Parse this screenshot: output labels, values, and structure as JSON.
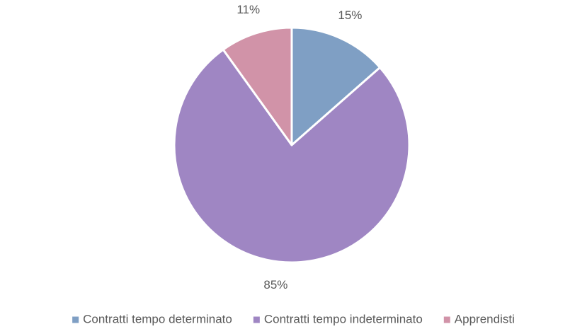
{
  "chart_data": {
    "type": "pie",
    "categories": [
      "Contratti tempo determinato",
      "Contratti tempo indeterminato",
      "Apprendisti"
    ],
    "values": [
      15,
      85,
      11
    ],
    "value_labels": [
      "15%",
      "85%",
      "11%"
    ],
    "colors": [
      "#7f9fc4",
      "#9f86c3",
      "#d193a8"
    ],
    "legend": "bottom"
  }
}
